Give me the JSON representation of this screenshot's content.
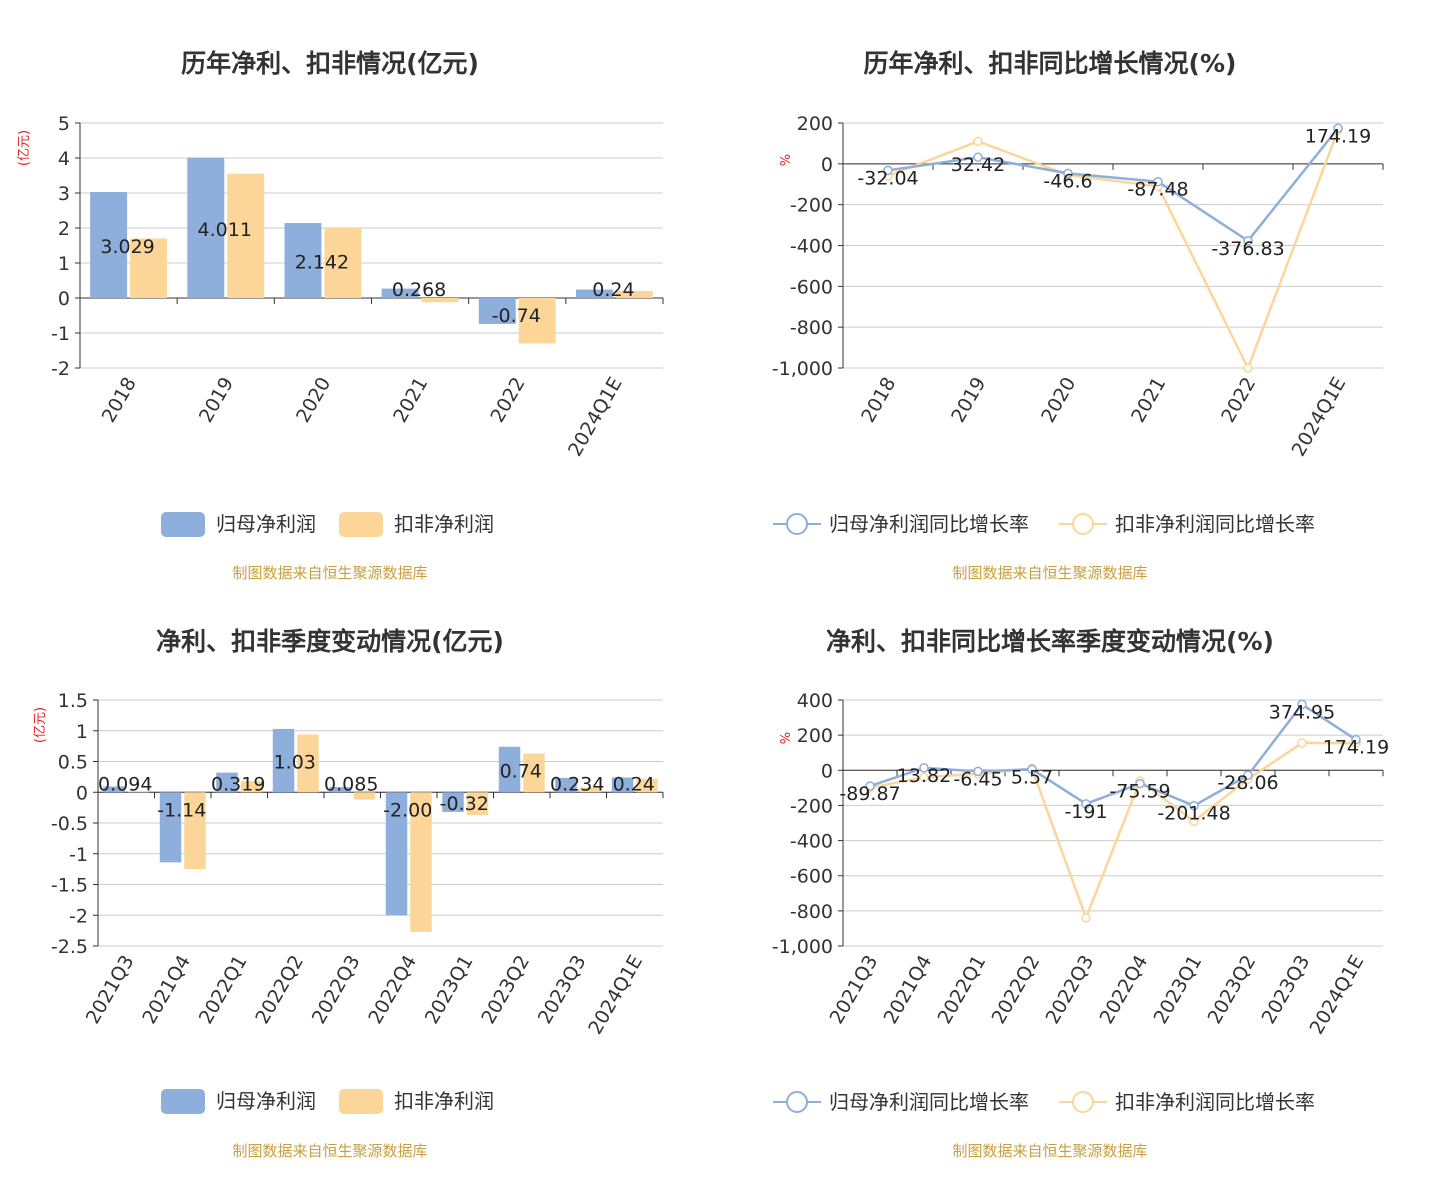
{
  "source_note": "制图数据来自恒生聚源数据库",
  "colors": {
    "series1": "#8eaedb",
    "series2": "#fcd699",
    "grid": "#cccccc",
    "axis": "#333333",
    "unit": "#e02020",
    "source": "#c8a040"
  },
  "chart_data": [
    {
      "type": "bar",
      "title": "历年净利、扣非情况(亿元)",
      "unit_label": "(亿元)",
      "categories": [
        "2018",
        "2019",
        "2020",
        "2021",
        "2022",
        "2024Q1E"
      ],
      "series": [
        {
          "name": "归母净利润",
          "values": [
            3.029,
            4.011,
            2.142,
            0.268,
            -0.74,
            0.24
          ],
          "labels": [
            "3.029",
            "4.011",
            "2.142",
            "0.268",
            "-0.74",
            "0.24"
          ]
        },
        {
          "name": "扣非净利润",
          "values": [
            1.7,
            3.55,
            2.02,
            -0.12,
            -1.3,
            0.2
          ]
        }
      ],
      "yticks": [
        "5",
        "4",
        "3",
        "2",
        "1",
        "0",
        "-1",
        "-2"
      ],
      "ylim": [
        -2,
        5
      ],
      "grid": true,
      "legend": "bottom"
    },
    {
      "type": "line",
      "title": "历年净利、扣非同比增长情况(%)",
      "unit_label": "%",
      "categories": [
        "2018",
        "2019",
        "2020",
        "2021",
        "2022",
        "2024Q1E"
      ],
      "series": [
        {
          "name": "归母净利润同比增长率",
          "values": [
            -32.04,
            32.42,
            -46.6,
            -87.48,
            -376.83,
            174.19
          ],
          "labels": [
            "-32.04",
            "32.42",
            "-46.6",
            "-87.48",
            "-376.83",
            "174.19"
          ]
        },
        {
          "name": "扣非净利润同比增长率",
          "values": [
            -60,
            110,
            -55,
            -110,
            -1000,
            165
          ]
        }
      ],
      "yticks": [
        "200",
        "0",
        "-200",
        "-400",
        "-600",
        "-800",
        "-1,000"
      ],
      "ylim": [
        -1000,
        200
      ],
      "grid": true,
      "legend": "bottom"
    },
    {
      "type": "bar",
      "title": "净利、扣非季度变动情况(亿元)",
      "unit_label": "(亿元)",
      "categories": [
        "2021Q3",
        "2021Q4",
        "2022Q1",
        "2022Q2",
        "2022Q3",
        "2022Q4",
        "2023Q1",
        "2023Q2",
        "2023Q3",
        "2024Q1E"
      ],
      "series": [
        {
          "name": "归母净利润",
          "values": [
            0.094,
            -1.14,
            0.319,
            1.03,
            0.085,
            -2.0,
            -0.32,
            0.74,
            0.234,
            0.24
          ],
          "labels": [
            "0.094",
            "-1.14",
            "0.319",
            "1.03",
            "0.085",
            "-2.00",
            "-0.32",
            "0.74",
            "0.234",
            "0.24"
          ]
        },
        {
          "name": "扣非净利润",
          "values": [
            0.02,
            -1.25,
            0.18,
            0.94,
            -0.12,
            -2.27,
            -0.37,
            0.63,
            0.08,
            0.22
          ]
        }
      ],
      "yticks": [
        "1.5",
        "1",
        "0.5",
        "0",
        "-0.5",
        "-1",
        "-1.5",
        "-2",
        "-2.5"
      ],
      "ylim": [
        -2.5,
        1.5
      ],
      "grid": true,
      "legend": "bottom"
    },
    {
      "type": "line",
      "title": "净利、扣非同比增长率季度变动情况(%)",
      "unit_label": "%",
      "categories": [
        "2021Q3",
        "2021Q4",
        "2022Q1",
        "2022Q2",
        "2022Q3",
        "2022Q4",
        "2023Q1",
        "2023Q2",
        "2023Q3",
        "2024Q1E"
      ],
      "series": [
        {
          "name": "归母净利润同比增长率",
          "values": [
            -89.87,
            13.82,
            -6.45,
            5.57,
            -191,
            -75.59,
            -201.48,
            -28.06,
            374.95,
            174.19
          ],
          "labels": [
            "-89.87",
            "13.82",
            "-6.45",
            "5.57",
            "-191",
            "-75.59",
            "-201.48",
            "-28.06",
            "374.95",
            "174.19"
          ]
        },
        {
          "name": "扣非净利润同比增长率",
          "values": [
            -100,
            -40,
            -20,
            10,
            -840,
            -60,
            -290,
            -50,
            155,
            155
          ]
        }
      ],
      "yticks": [
        "400",
        "200",
        "0",
        "-200",
        "-400",
        "-600",
        "-800",
        "-1,000"
      ],
      "ylim": [
        -1000,
        400
      ],
      "grid": true,
      "legend": "bottom"
    }
  ]
}
